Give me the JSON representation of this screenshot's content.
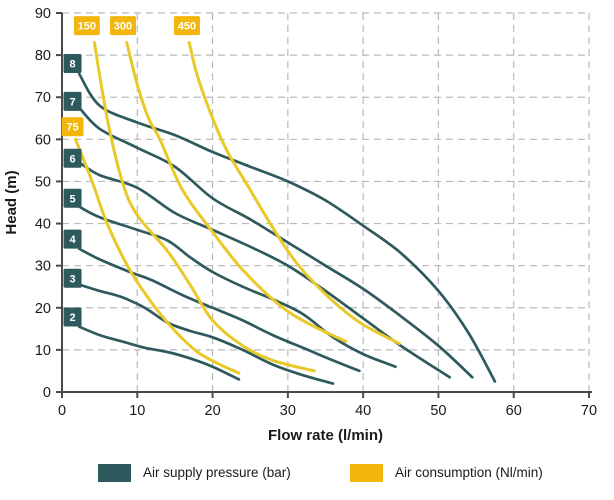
{
  "colors": {
    "pressure": "#2F5A5D",
    "consumption_curve": "#E9C929",
    "consumption_chip": "#F2B60D",
    "grid": "#BABABA",
    "axis": "#4A4A4A",
    "text": "#1A1A1A",
    "chip_text": "#FFFFFF"
  },
  "chart_data": {
    "type": "line",
    "title": "",
    "xlabel": "Flow rate (l/min)",
    "ylabel": "Head (m)",
    "xlim": [
      0,
      70
    ],
    "ylim": [
      0,
      90
    ],
    "xticks": [
      0,
      10,
      20,
      30,
      40,
      50,
      60,
      70
    ],
    "yticks": [
      0,
      10,
      20,
      30,
      40,
      50,
      60,
      70,
      80,
      90
    ],
    "grid": true,
    "legend": [
      {
        "label": "Air supply pressure (bar)",
        "series_group": "pressure"
      },
      {
        "label": "Air consumption (Nl/min)",
        "series_group": "consumption"
      }
    ],
    "series": [
      {
        "group": "pressure",
        "name": "8",
        "label_at": [
          1.4,
          78
        ],
        "points": [
          [
            2.3,
            75.5
          ],
          [
            5,
            68
          ],
          [
            10,
            64
          ],
          [
            15,
            61
          ],
          [
            20,
            57
          ],
          [
            25,
            53.5
          ],
          [
            30,
            50
          ],
          [
            35,
            45.5
          ],
          [
            40,
            39.5
          ],
          [
            45,
            33
          ],
          [
            50,
            24
          ],
          [
            54,
            14
          ],
          [
            57.5,
            2.5
          ]
        ]
      },
      {
        "group": "pressure",
        "name": "7",
        "label_at": [
          1.4,
          69
        ],
        "points": [
          [
            2.3,
            67.5
          ],
          [
            5,
            62.5
          ],
          [
            10,
            58
          ],
          [
            15,
            53.5
          ],
          [
            20,
            46
          ],
          [
            25,
            41
          ],
          [
            30,
            35.5
          ],
          [
            35,
            30
          ],
          [
            40,
            24.5
          ],
          [
            45,
            18
          ],
          [
            50,
            11
          ],
          [
            54.5,
            3.5
          ]
        ]
      },
      {
        "group": "pressure",
        "name": "6",
        "label_at": [
          1.4,
          55.5
        ],
        "points": [
          [
            2.3,
            54.5
          ],
          [
            5,
            51.5
          ],
          [
            10,
            48.5
          ],
          [
            15,
            42.5
          ],
          [
            20,
            38.5
          ],
          [
            25,
            34.5
          ],
          [
            30,
            30
          ],
          [
            35,
            24
          ],
          [
            40,
            17.5
          ],
          [
            45,
            11
          ],
          [
            51.5,
            3.5
          ]
        ]
      },
      {
        "group": "pressure",
        "name": "5",
        "label_at": [
          1.4,
          46
        ],
        "points": [
          [
            2.3,
            44
          ],
          [
            5,
            41.5
          ],
          [
            10,
            38.5
          ],
          [
            14,
            36
          ],
          [
            17,
            32
          ],
          [
            20,
            28.5
          ],
          [
            24,
            25
          ],
          [
            28,
            22
          ],
          [
            32,
            18.5
          ],
          [
            36,
            13
          ],
          [
            40,
            9
          ],
          [
            44.3,
            6
          ]
        ]
      },
      {
        "group": "pressure",
        "name": "4",
        "label_at": [
          1.4,
          36.3
        ],
        "points": [
          [
            2.3,
            34
          ],
          [
            5,
            31.5
          ],
          [
            9,
            28.5
          ],
          [
            12,
            26.5
          ],
          [
            16,
            23
          ],
          [
            20,
            20
          ],
          [
            24,
            17
          ],
          [
            28,
            13.5
          ],
          [
            32,
            10.5
          ],
          [
            36,
            7.5
          ],
          [
            39.5,
            5
          ]
        ]
      },
      {
        "group": "pressure",
        "name": "3",
        "label_at": [
          1.4,
          27
        ],
        "points": [
          [
            2.3,
            25.5
          ],
          [
            5,
            24
          ],
          [
            8,
            22.5
          ],
          [
            11,
            20
          ],
          [
            14,
            16.5
          ],
          [
            17,
            14.5
          ],
          [
            20,
            13
          ],
          [
            24,
            10
          ],
          [
            28,
            6.5
          ],
          [
            32,
            4
          ],
          [
            36,
            2
          ]
        ]
      },
      {
        "group": "pressure",
        "name": "2",
        "label_at": [
          1.4,
          17.8
        ],
        "points": [
          [
            2.3,
            15.5
          ],
          [
            5,
            13.5
          ],
          [
            8,
            12
          ],
          [
            11,
            10.5
          ],
          [
            14,
            9.5
          ],
          [
            17,
            8
          ],
          [
            20,
            6
          ],
          [
            23.5,
            3
          ]
        ]
      },
      {
        "group": "consumption",
        "name": "75",
        "label_at": [
          1.4,
          63
        ],
        "points": [
          [
            1.8,
            60
          ],
          [
            4,
            50
          ],
          [
            6,
            40
          ],
          [
            9,
            29
          ],
          [
            12,
            21
          ],
          [
            15,
            14.5
          ],
          [
            18,
            9.5
          ],
          [
            21,
            6.5
          ],
          [
            23.5,
            4.5
          ]
        ]
      },
      {
        "group": "consumption",
        "name": "150",
        "label_at": [
          3.3,
          87
        ],
        "points": [
          [
            4.3,
            83
          ],
          [
            6,
            65
          ],
          [
            8,
            50
          ],
          [
            10,
            42
          ],
          [
            14,
            33.5
          ],
          [
            17,
            25.5
          ],
          [
            20,
            17
          ],
          [
            24,
            11
          ],
          [
            28,
            7.5
          ],
          [
            33.5,
            5
          ]
        ]
      },
      {
        "group": "consumption",
        "name": "300",
        "label_at": [
          8.1,
          87
        ],
        "points": [
          [
            8.6,
            83
          ],
          [
            10,
            73
          ],
          [
            11.5,
            65
          ],
          [
            13,
            60
          ],
          [
            16,
            48
          ],
          [
            20,
            38
          ],
          [
            24,
            29
          ],
          [
            29,
            20.5
          ],
          [
            33,
            16
          ],
          [
            37.7,
            12
          ]
        ]
      },
      {
        "group": "consumption",
        "name": "450",
        "label_at": [
          16.6,
          87
        ],
        "points": [
          [
            16.9,
            83
          ],
          [
            18,
            75
          ],
          [
            20,
            65
          ],
          [
            22,
            57
          ],
          [
            25,
            48
          ],
          [
            28,
            39
          ],
          [
            31,
            31
          ],
          [
            34,
            25
          ],
          [
            37,
            20
          ],
          [
            40,
            16
          ],
          [
            44.8,
            11.5
          ]
        ]
      }
    ]
  }
}
